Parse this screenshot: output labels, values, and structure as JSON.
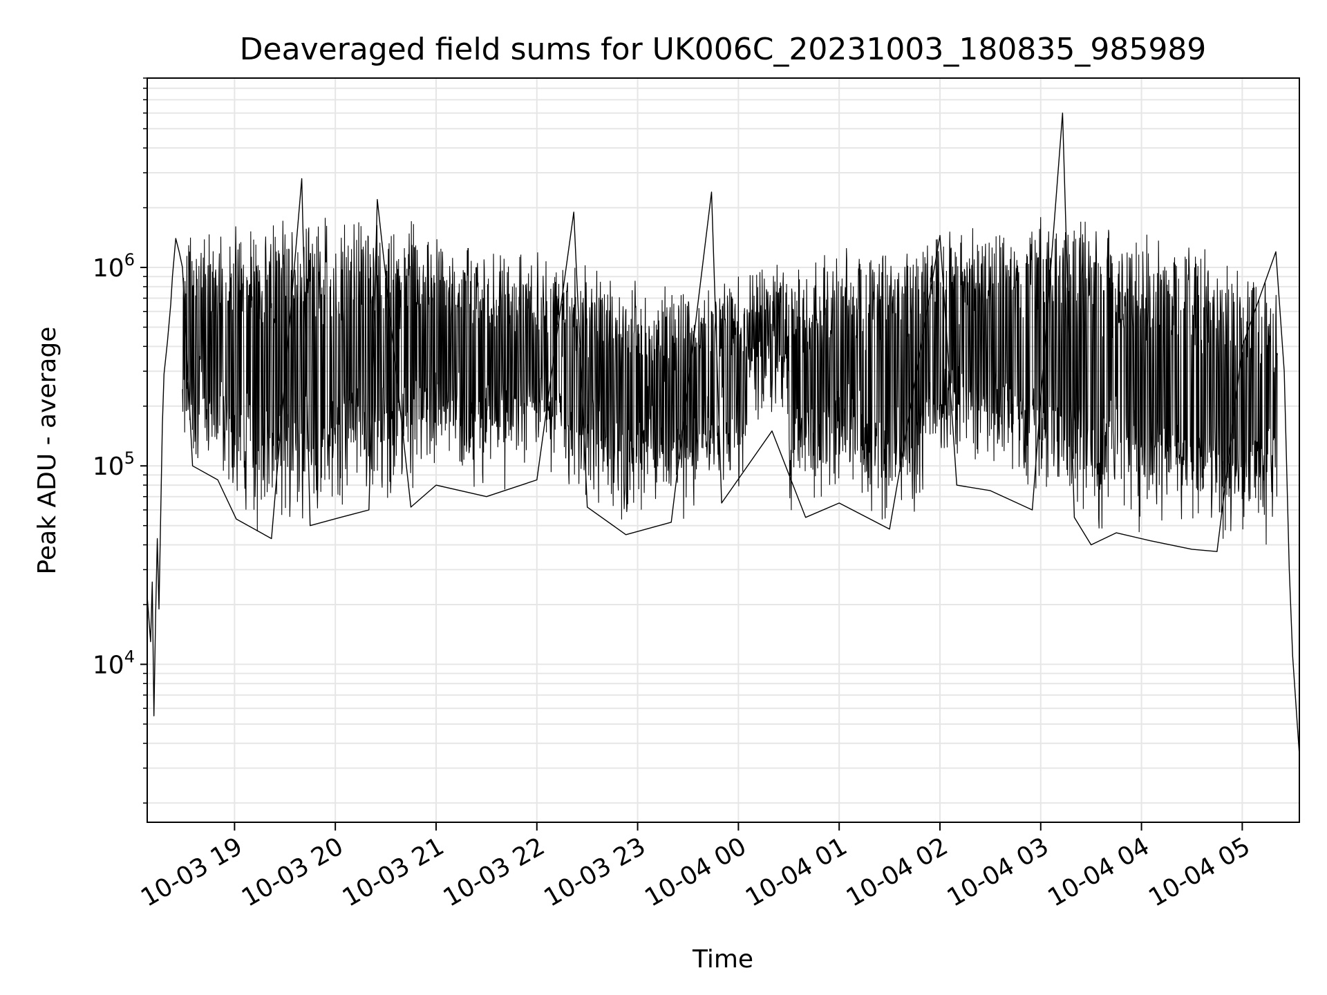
{
  "chart_data": {
    "type": "line",
    "title": "Deaveraged field sums for UK006C_20231003_180835_985989",
    "xlabel": "Time",
    "ylabel": "Peak ADU - average",
    "x_scale": "time",
    "y_scale": "log",
    "xlim": [
      "2023-10-03 18:08",
      "2023-10-04 05:34"
    ],
    "ylim": [
      1600,
      9000000
    ],
    "x_ticks": [
      "10-03 19",
      "10-03 20",
      "10-03 21",
      "10-03 22",
      "10-03 23",
      "10-04 00",
      "10-04 01",
      "10-04 02",
      "10-04 03",
      "10-04 04",
      "10-04 05"
    ],
    "y_ticks": [
      {
        "base": "10",
        "exp": "4",
        "value": 10000
      },
      {
        "base": "10",
        "exp": "5",
        "value": 100000
      },
      {
        "base": "10",
        "exp": "6",
        "value": 1000000
      }
    ],
    "grid": true,
    "legend": "none",
    "line_color": "#000000",
    "grid_color": "#e6e6e6",
    "series": [
      {
        "points": [
          [
            "2023-10-03 18:08",
            22000
          ],
          [
            "2023-10-03 18:10",
            13000
          ],
          [
            "2023-10-03 18:11",
            26000
          ],
          [
            "2023-10-03 18:12",
            5500
          ],
          [
            "2023-10-03 18:13",
            18000
          ],
          [
            "2023-10-03 18:14",
            43000
          ],
          [
            "2023-10-03 18:15",
            19000
          ],
          [
            "2023-10-03 18:17",
            160000
          ],
          [
            "2023-10-03 18:18",
            290000
          ],
          [
            "2023-10-03 18:20",
            420000
          ],
          [
            "2023-10-03 18:22",
            650000
          ],
          [
            "2023-10-03 18:23",
            900000
          ],
          [
            "2023-10-03 18:25",
            1400000
          ],
          [
            "2023-10-03 18:27",
            1200000
          ],
          [
            "2023-10-03 18:29",
            1000000
          ],
          [
            "2023-10-03 18:35",
            100000
          ],
          [
            "2023-10-03 18:50",
            85000
          ],
          [
            "2023-10-03 19:01",
            54000
          ],
          [
            "2023-10-03 19:22",
            43000
          ],
          [
            "2023-10-03 19:40",
            2800000
          ],
          [
            "2023-10-03 19:45",
            50000
          ],
          [
            "2023-10-03 20:03",
            55000
          ],
          [
            "2023-10-03 20:20",
            60000
          ],
          [
            "2023-10-03 20:25",
            2200000
          ],
          [
            "2023-10-03 20:45",
            62000
          ],
          [
            "2023-10-03 21:00",
            80000
          ],
          [
            "2023-10-03 21:30",
            70000
          ],
          [
            "2023-10-03 22:00",
            85000
          ],
          [
            "2023-10-03 22:22",
            1900000
          ],
          [
            "2023-10-03 22:30",
            62000
          ],
          [
            "2023-10-03 22:53",
            45000
          ],
          [
            "2023-10-03 23:20",
            52000
          ],
          [
            "2023-10-03 23:44",
            2400000
          ],
          [
            "2023-10-03 23:50",
            65000
          ],
          [
            "2023-10-04 00:20",
            150000
          ],
          [
            "2023-10-04 00:40",
            55000
          ],
          [
            "2023-10-04 01:00",
            65000
          ],
          [
            "2023-10-04 01:30",
            48000
          ],
          [
            "2023-10-04 02:00",
            1450000
          ],
          [
            "2023-10-04 02:10",
            80000
          ],
          [
            "2023-10-04 02:30",
            75000
          ],
          [
            "2023-10-04 02:55",
            60000
          ],
          [
            "2023-10-04 03:13",
            6000000
          ],
          [
            "2023-10-04 03:20",
            55000
          ],
          [
            "2023-10-04 03:30",
            40000
          ],
          [
            "2023-10-04 03:45",
            46000
          ],
          [
            "2023-10-04 04:05",
            42000
          ],
          [
            "2023-10-04 04:30",
            38000
          ],
          [
            "2023-10-04 04:45",
            37000
          ],
          [
            "2023-10-04 05:00",
            400000
          ],
          [
            "2023-10-04 05:20",
            1200000
          ],
          [
            "2023-10-04 05:25",
            300000
          ],
          [
            "2023-10-04 05:28",
            30000
          ],
          [
            "2023-10-04 05:30",
            11000
          ],
          [
            "2023-10-04 05:34",
            3500
          ]
        ]
      }
    ]
  }
}
